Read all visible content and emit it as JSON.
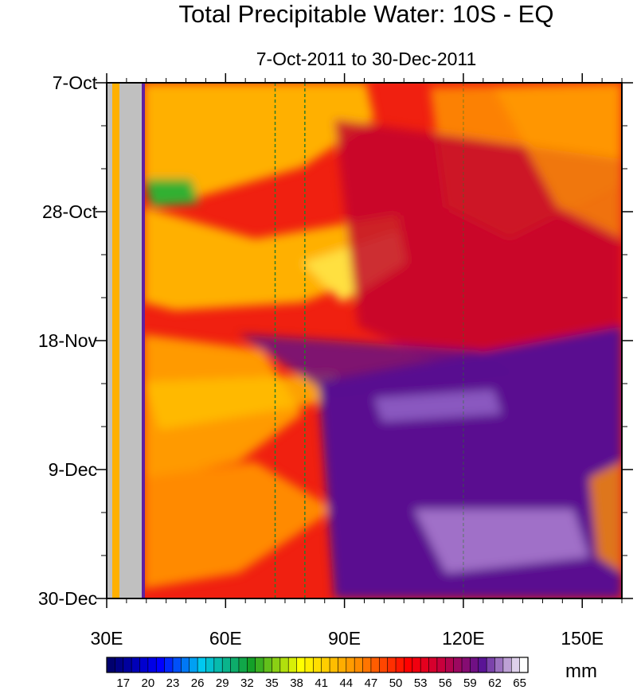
{
  "chart_data": {
    "type": "heatmap",
    "title": "Total Precipitable Water: 10S - EQ",
    "subtitle": "7-Oct-2011 to 30-Dec-2011",
    "x_axis": {
      "range": [
        30,
        160
      ],
      "ticks": [
        30,
        60,
        90,
        120,
        150
      ],
      "tick_labels": [
        "30E",
        "60E",
        "90E",
        "120E",
        "150E"
      ]
    },
    "y_axis": {
      "range_days": [
        0,
        84
      ],
      "ticks": [
        0,
        21,
        42,
        63,
        84
      ],
      "tick_labels": [
        "7-Oct",
        "28-Oct",
        "18-Nov",
        "9-Dec",
        "30-Dec"
      ]
    },
    "dashed_lines_lon": [
      72.5,
      80,
      120
    ],
    "land_mask_lon": [
      [
        30,
        32
      ],
      [
        34,
        39
      ]
    ],
    "colorbar": {
      "unit": "mm",
      "min": 15.5,
      "max": 66.5,
      "step": 1,
      "labels": [
        "17",
        "20",
        "23",
        "26",
        "29",
        "32",
        "35",
        "38",
        "41",
        "44",
        "47",
        "50",
        "53",
        "56",
        "59",
        "62",
        "65"
      ]
    },
    "colors": {
      "low_dark_blue": "#00007a",
      "blue": "#0000ff",
      "cyan": "#00e0e0",
      "green": "#10a020",
      "yellow": "#ffff00",
      "orange": "#ff8000",
      "red": "#ff0000",
      "crimson": "#c80030",
      "purple": "#4a0080",
      "high_white": "#ffffff",
      "land": "#c0c0c0",
      "dashed_line": "#2a7a2a"
    }
  }
}
